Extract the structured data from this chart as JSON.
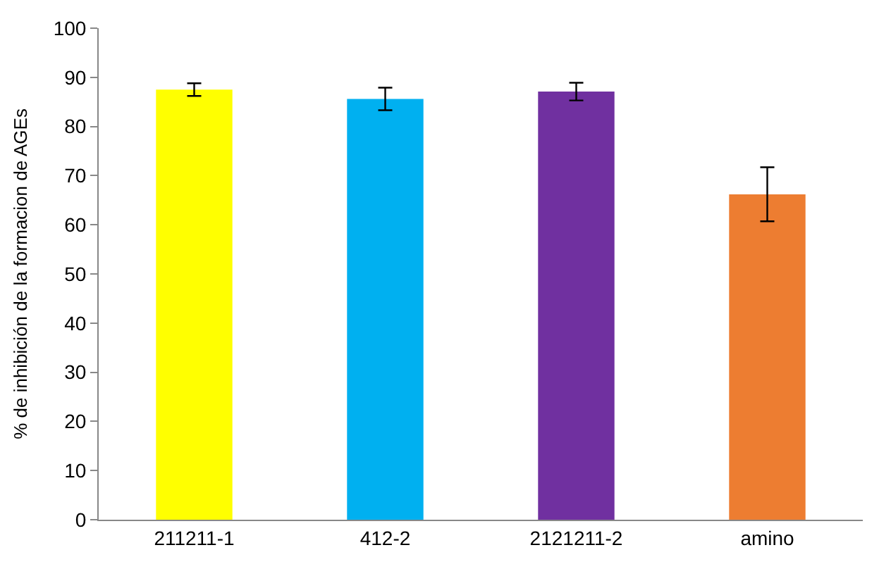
{
  "chart_data": {
    "type": "bar",
    "ylabel": "% de inhibición de la formacion de AGEs",
    "categories": [
      "211211-1",
      "412-2",
      "2121211-2",
      "amino"
    ],
    "values": [
      87.5,
      85.6,
      87.1,
      66.2
    ],
    "colors": [
      "#ffff00",
      "#00b0f0",
      "#7030a0",
      "#ed7d31"
    ],
    "errors": [
      1.3,
      2.3,
      1.8,
      5.5
    ],
    "ylim": [
      0,
      100
    ],
    "yticks": [
      0,
      10,
      20,
      30,
      40,
      50,
      60,
      70,
      80,
      90,
      100
    ]
  }
}
